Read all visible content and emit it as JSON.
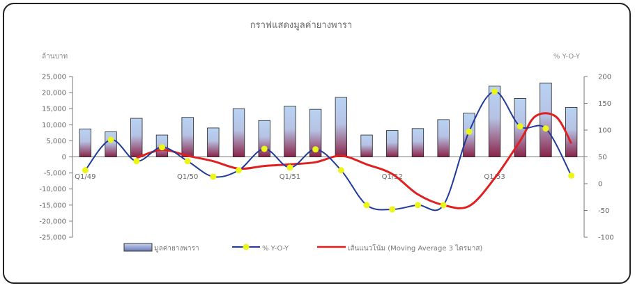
{
  "chart_data": {
    "type": "bar",
    "title": "กราฟแสดงมูลค่ายางพารา",
    "y_left_label": "ล้านบาท",
    "y_right_label": "% Y-O-Y",
    "y_left_lim": [
      -25000,
      25000
    ],
    "y_left_ticks": [
      "25,000",
      "20,000",
      "15,000",
      "10,000",
      "5,000",
      "0",
      "-5,000",
      "-10,000",
      "-15,000",
      "-20,000",
      "-25,000"
    ],
    "y_right_lim": [
      -100,
      200
    ],
    "y_right_ticks": [
      "200",
      "150",
      "100",
      "50",
      "0",
      "-50",
      "-100"
    ],
    "x_tick_labels": [
      {
        "index": 0,
        "label": "Q1/49"
      },
      {
        "index": 4,
        "label": "Q1/50"
      },
      {
        "index": 8,
        "label": "Q1/51"
      },
      {
        "index": 12,
        "label": "Q1/52"
      },
      {
        "index": 16,
        "label": "Q1/53"
      }
    ],
    "series": [
      {
        "name": "มูลค่ายางพารา",
        "type": "bar",
        "axis": "left",
        "values": [
          8700,
          7800,
          12000,
          6800,
          12300,
          9000,
          15000,
          11300,
          15800,
          14800,
          18500,
          6800,
          8200,
          8800,
          11600,
          13600,
          22000,
          18200,
          23000,
          15400
        ]
      },
      {
        "name": "% Y-O-Y",
        "type": "line",
        "axis": "right",
        "color": "#1f3a9a",
        "marker_color": "#ecf51a",
        "values": [
          25,
          82,
          42,
          68,
          42,
          13,
          25,
          65,
          30,
          64,
          25,
          -40,
          -48,
          -40,
          -40,
          97,
          172,
          107,
          103,
          15
        ]
      },
      {
        "name": "เส้นแนวโน้ม (Moving Average 3 ไตรมาส)",
        "type": "line",
        "axis": "right",
        "color": "#e02020",
        "values": [
          null,
          null,
          48,
          63,
          52,
          42,
          28,
          33,
          36,
          40,
          52,
          36,
          18,
          -20,
          -40,
          -42,
          10,
          80,
          126,
          125,
          75
        ]
      }
    ],
    "ma_x_positions": [
      null,
      null,
      2,
      3,
      4,
      5,
      6,
      7,
      8,
      9,
      10,
      11,
      12,
      13,
      14,
      15,
      16,
      17,
      17.6,
      18.4,
      19
    ],
    "grid": false,
    "legend_position": "bottom"
  }
}
